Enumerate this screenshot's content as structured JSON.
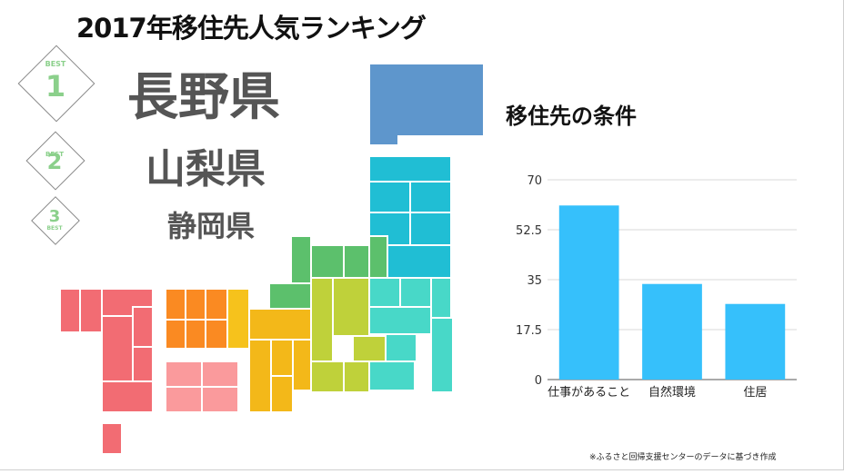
{
  "title": "2017年移住先人気ランキング",
  "ranking": [
    {
      "best_label": "BEST",
      "rank": "1",
      "prefecture": "長野県"
    },
    {
      "best_label": "BEST",
      "rank": "2",
      "prefecture": "山梨県"
    },
    {
      "best_label": "BEST",
      "rank": "3",
      "prefecture": "静岡県"
    }
  ],
  "chart_title": "移住先の条件",
  "source_note": "※ふるさと回帰支援センターのデータに基づき作成",
  "colors": {
    "bar": "#36c0fb",
    "badge": "#8bd08b"
  },
  "chart_data": {
    "type": "bar",
    "categories": [
      "仕事があること",
      "自然環境",
      "住居"
    ],
    "values": [
      61,
      33.5,
      26.5
    ],
    "title": "",
    "xlabel": "",
    "ylabel": "",
    "ylim": [
      0,
      70
    ],
    "yticks": [
      "0",
      "17.5",
      "35",
      "52.5",
      "70"
    ],
    "grid": true
  }
}
